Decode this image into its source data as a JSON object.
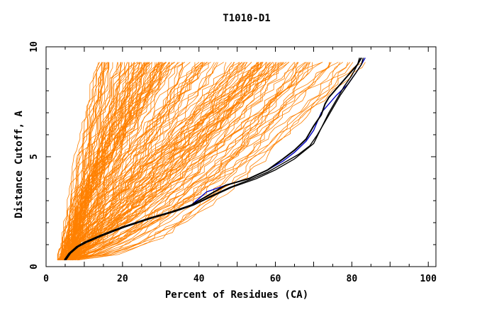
{
  "chart_data": {
    "type": "line",
    "title": "T1010-D1",
    "xlabel": "Percent of Residues (CA)",
    "ylabel": "Distance Cutoff, A",
    "xlim": [
      0,
      102
    ],
    "ylim": [
      0,
      10
    ],
    "xticks": [
      "0",
      "20",
      "40",
      "60",
      "80",
      "100"
    ],
    "yticks": [
      "0",
      "5",
      "10"
    ],
    "colors": {
      "models": "#ff8000",
      "highlight_black": "#000000",
      "highlight_blue": "#0000c0"
    },
    "model_curve_count": 170,
    "series": [
      {
        "color": "#0000c0",
        "x": [
          4.8,
          6,
          8,
          10,
          14,
          20,
          27,
          33,
          38,
          42,
          47,
          53,
          58,
          62,
          65,
          68,
          70,
          71,
          72,
          73,
          74,
          76,
          79,
          81,
          82.5,
          83.5
        ],
        "y": [
          0.3,
          0.6,
          0.9,
          1.1,
          1.4,
          1.8,
          2.2,
          2.5,
          2.8,
          3.4,
          3.7,
          4.0,
          4.4,
          4.8,
          5.2,
          5.7,
          6.2,
          6.6,
          7.0,
          7.2,
          7.4,
          7.8,
          8.3,
          8.8,
          9.2,
          9.5
        ]
      },
      {
        "color": "#000000",
        "x": [
          4.8,
          6,
          8,
          10,
          14,
          20,
          27,
          33,
          38,
          42,
          47,
          53,
          58,
          62,
          65,
          68,
          70,
          72,
          73,
          74,
          76,
          78,
          80,
          81.5,
          82.5
        ],
        "y": [
          0.3,
          0.6,
          0.9,
          1.1,
          1.4,
          1.8,
          2.2,
          2.5,
          2.8,
          3.2,
          3.7,
          4.0,
          4.4,
          4.9,
          5.3,
          5.8,
          6.4,
          6.9,
          7.4,
          7.7,
          8.1,
          8.5,
          8.9,
          9.2,
          9.5
        ]
      },
      {
        "color": "#000000",
        "x": [
          5,
          6.2,
          8.2,
          10.5,
          14.5,
          20.5,
          27.5,
          33.5,
          38.5,
          43,
          48,
          54,
          58,
          62,
          66,
          69,
          71,
          73,
          75,
          77,
          79,
          81,
          82.5,
          83
        ],
        "y": [
          0.3,
          0.6,
          0.9,
          1.1,
          1.4,
          1.8,
          2.2,
          2.5,
          2.8,
          3.2,
          3.6,
          4.0,
          4.3,
          4.7,
          5.1,
          5.5,
          6.0,
          6.6,
          7.2,
          7.8,
          8.3,
          8.8,
          9.2,
          9.5
        ]
      },
      {
        "color": "#000000",
        "x": [
          5.2,
          6.4,
          8.4,
          10.6,
          14.6,
          20.6,
          27.6,
          33.6,
          38.6,
          43.5,
          48.5,
          55,
          60,
          65,
          70,
          72,
          74,
          76,
          78,
          80,
          81.5,
          82
        ],
        "y": [
          0.3,
          0.6,
          0.9,
          1.1,
          1.4,
          1.8,
          2.2,
          2.5,
          2.8,
          3.2,
          3.6,
          4.0,
          4.4,
          4.9,
          5.6,
          6.3,
          7.0,
          7.6,
          8.2,
          8.7,
          9.2,
          9.5
        ]
      }
    ]
  }
}
